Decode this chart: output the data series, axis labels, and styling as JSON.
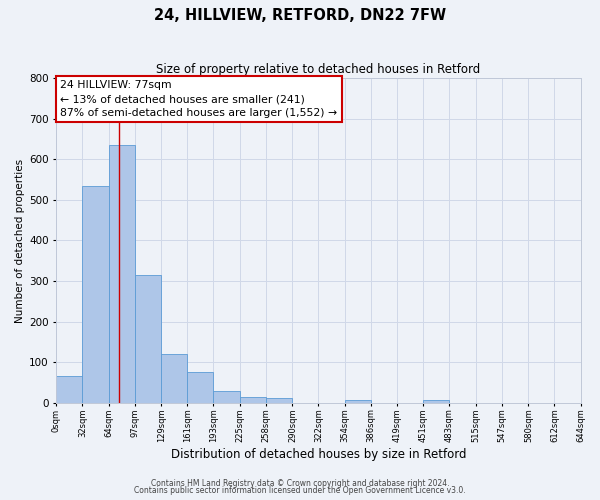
{
  "title": "24, HILLVIEW, RETFORD, DN22 7FW",
  "subtitle": "Size of property relative to detached houses in Retford",
  "xlabel": "Distribution of detached houses by size in Retford",
  "ylabel": "Number of detached properties",
  "bin_edges": [
    0,
    32,
    64,
    97,
    129,
    161,
    193,
    225,
    258,
    290,
    322,
    354,
    386,
    419,
    451,
    483,
    515,
    547,
    580,
    612,
    644
  ],
  "bar_heights": [
    65,
    535,
    635,
    315,
    120,
    75,
    30,
    14,
    11,
    0,
    0,
    8,
    0,
    0,
    7,
    0,
    0,
    0,
    0,
    0
  ],
  "bar_color": "#aec6e8",
  "bar_edge_color": "#5b9bd5",
  "grid_color": "#d0d8e8",
  "background_color": "#eef2f8",
  "property_line_x": 77,
  "property_line_color": "#cc0000",
  "annotation_text": "24 HILLVIEW: 77sqm\n← 13% of detached houses are smaller (241)\n87% of semi-detached houses are larger (1,552) →",
  "annotation_box_facecolor": "#ffffff",
  "annotation_box_edgecolor": "#cc0000",
  "ylim": [
    0,
    800
  ],
  "yticks": [
    0,
    100,
    200,
    300,
    400,
    500,
    600,
    700,
    800
  ],
  "footer_line1": "Contains HM Land Registry data © Crown copyright and database right 2024.",
  "footer_line2": "Contains public sector information licensed under the Open Government Licence v3.0.",
  "tick_labels": [
    "0sqm",
    "32sqm",
    "64sqm",
    "97sqm",
    "129sqm",
    "161sqm",
    "193sqm",
    "225sqm",
    "258sqm",
    "290sqm",
    "322sqm",
    "354sqm",
    "386sqm",
    "419sqm",
    "451sqm",
    "483sqm",
    "515sqm",
    "547sqm",
    "580sqm",
    "612sqm",
    "644sqm"
  ],
  "spine_color": "#c0c8d8"
}
